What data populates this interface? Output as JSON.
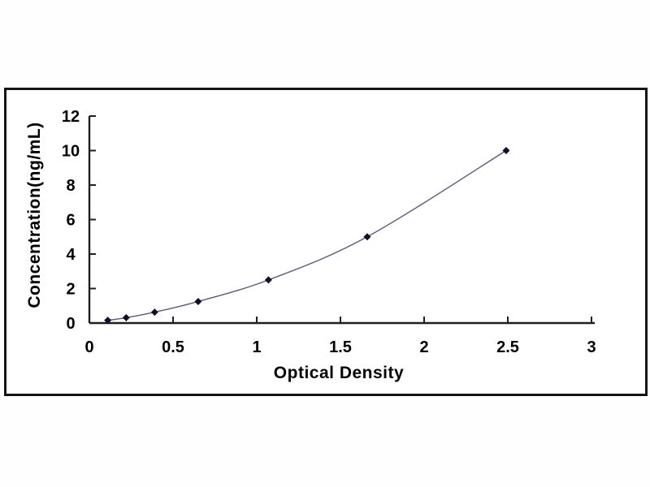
{
  "page": {
    "background": "#fdfdfd",
    "panel_background": "#ffffff",
    "panel_border_color": "#151515"
  },
  "chart_data": {
    "type": "line",
    "title": "",
    "xlabel": "Optical Density",
    "ylabel": "Concentration(ng/mL)",
    "x": [
      0.11,
      0.22,
      0.39,
      0.65,
      1.07,
      1.66,
      2.49
    ],
    "y": [
      0.16,
      0.31,
      0.63,
      1.25,
      2.5,
      5,
      10
    ],
    "xlim": [
      0,
      3
    ],
    "ylim": [
      0,
      12
    ],
    "x_ticks": [
      0,
      0.5,
      1,
      1.5,
      2,
      2.5,
      3
    ],
    "x_tick_labels": [
      "0",
      "0.5",
      "1",
      "1.5",
      "2",
      "2.5",
      "3"
    ],
    "y_ticks": [
      0,
      2,
      4,
      6,
      8,
      10,
      12
    ],
    "y_tick_labels": [
      "0",
      "2",
      "4",
      "6",
      "8",
      "10",
      "12"
    ],
    "grid": false,
    "legend": "none",
    "marker_shape": "diamond",
    "line_color": "#5a5a7d",
    "marker_color": "#10102e",
    "axis_color": "#1f1f1f",
    "text_color": "#000000"
  }
}
